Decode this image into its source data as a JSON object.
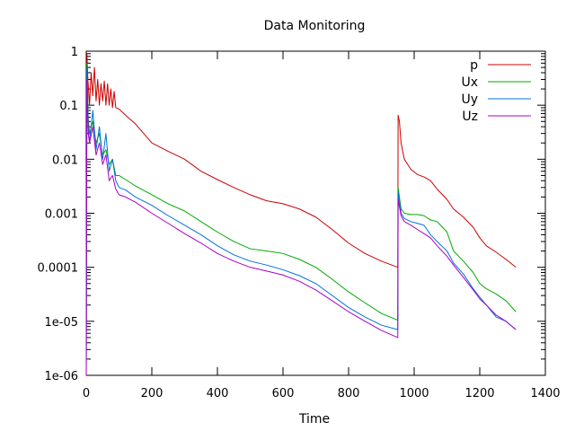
{
  "chart_data": {
    "type": "line",
    "title": "Data Monitoring",
    "xlabel": "Time",
    "ylabel": "",
    "xlim": [
      0,
      1400
    ],
    "ylim": [
      1e-06,
      1
    ],
    "yscale": "log",
    "grid": false,
    "legend_position": "top-right",
    "x_ticks": [
      0,
      200,
      400,
      600,
      800,
      1000,
      1200,
      1400
    ],
    "x_tick_labels": [
      "0",
      "200",
      "400",
      "600",
      "800",
      "1000",
      "1200",
      "1400"
    ],
    "y_ticks": [
      1e-06,
      1e-05,
      0.0001,
      0.001,
      0.01,
      0.1,
      1
    ],
    "y_tick_labels": [
      "1e-06",
      "1e-05",
      "0.0001",
      "0.001",
      "0.01",
      "0.1",
      "1"
    ],
    "series": [
      {
        "name": "p",
        "color": "#cc0000",
        "points": [
          [
            0,
            1e-06
          ],
          [
            2,
            0.9
          ],
          [
            5,
            0.3
          ],
          [
            10,
            0.1
          ],
          [
            15,
            0.4
          ],
          [
            20,
            0.15
          ],
          [
            25,
            0.5
          ],
          [
            30,
            0.12
          ],
          [
            35,
            0.3
          ],
          [
            40,
            0.1
          ],
          [
            45,
            0.25
          ],
          [
            50,
            0.12
          ],
          [
            55,
            0.28
          ],
          [
            60,
            0.1
          ],
          [
            65,
            0.25
          ],
          [
            70,
            0.1
          ],
          [
            75,
            0.2
          ],
          [
            80,
            0.09
          ],
          [
            85,
            0.18
          ],
          [
            90,
            0.09
          ],
          [
            100,
            0.085
          ],
          [
            120,
            0.065
          ],
          [
            150,
            0.045
          ],
          [
            200,
            0.02
          ],
          [
            250,
            0.014
          ],
          [
            300,
            0.01
          ],
          [
            350,
            0.006
          ],
          [
            400,
            0.0042
          ],
          [
            450,
            0.003
          ],
          [
            500,
            0.0022
          ],
          [
            550,
            0.0017
          ],
          [
            600,
            0.0015
          ],
          [
            650,
            0.0012
          ],
          [
            700,
            0.00085
          ],
          [
            750,
            0.0005
          ],
          [
            800,
            0.00028
          ],
          [
            850,
            0.00018
          ],
          [
            900,
            0.00013
          ],
          [
            950,
            0.0001
          ],
          [
            951,
            0.065
          ],
          [
            955,
            0.05
          ],
          [
            960,
            0.02
          ],
          [
            970,
            0.01
          ],
          [
            990,
            0.0065
          ],
          [
            1010,
            0.0052
          ],
          [
            1030,
            0.0047
          ],
          [
            1050,
            0.004
          ],
          [
            1070,
            0.0028
          ],
          [
            1100,
            0.0018
          ],
          [
            1120,
            0.0012
          ],
          [
            1150,
            0.00085
          ],
          [
            1180,
            0.00055
          ],
          [
            1200,
            0.00035
          ],
          [
            1220,
            0.00025
          ],
          [
            1250,
            0.00019
          ],
          [
            1280,
            0.00014
          ],
          [
            1310,
            0.0001
          ]
        ]
      },
      {
        "name": "Ux",
        "color": "#00aa00",
        "points": [
          [
            0,
            1e-06
          ],
          [
            2,
            0.6
          ],
          [
            6,
            0.06
          ],
          [
            10,
            0.03
          ],
          [
            20,
            0.05
          ],
          [
            30,
            0.02
          ],
          [
            40,
            0.03
          ],
          [
            50,
            0.012
          ],
          [
            60,
            0.015
          ],
          [
            70,
            0.008
          ],
          [
            80,
            0.01
          ],
          [
            90,
            0.005
          ],
          [
            100,
            0.005
          ],
          [
            120,
            0.0042
          ],
          [
            150,
            0.0032
          ],
          [
            200,
            0.0022
          ],
          [
            250,
            0.0015
          ],
          [
            300,
            0.0011
          ],
          [
            350,
            0.0007
          ],
          [
            400,
            0.00045
          ],
          [
            450,
            0.0003
          ],
          [
            500,
            0.00022
          ],
          [
            550,
            0.0002
          ],
          [
            600,
            0.00018
          ],
          [
            650,
            0.00014
          ],
          [
            700,
            0.0001
          ],
          [
            750,
            6e-05
          ],
          [
            800,
            3.5e-05
          ],
          [
            850,
            2.2e-05
          ],
          [
            900,
            1.4e-05
          ],
          [
            950,
            1.05e-05
          ],
          [
            951,
            0.003
          ],
          [
            960,
            0.0012
          ],
          [
            970,
            0.001
          ],
          [
            990,
            0.00095
          ],
          [
            1010,
            0.00095
          ],
          [
            1030,
            0.0009
          ],
          [
            1050,
            0.00075
          ],
          [
            1070,
            0.0007
          ],
          [
            1100,
            0.00045
          ],
          [
            1120,
            0.0002
          ],
          [
            1150,
            0.00013
          ],
          [
            1180,
            8e-05
          ],
          [
            1200,
            5e-05
          ],
          [
            1220,
            4e-05
          ],
          [
            1250,
            3.2e-05
          ],
          [
            1280,
            2.4e-05
          ],
          [
            1310,
            1.5e-05
          ]
        ]
      },
      {
        "name": "Uy",
        "color": "#0070dd",
        "points": [
          [
            0,
            1e-06
          ],
          [
            2,
            0.5
          ],
          [
            6,
            0.04
          ],
          [
            10,
            0.02
          ],
          [
            20,
            0.08
          ],
          [
            30,
            0.015
          ],
          [
            40,
            0.04
          ],
          [
            50,
            0.01
          ],
          [
            60,
            0.03
          ],
          [
            70,
            0.006
          ],
          [
            80,
            0.01
          ],
          [
            90,
            0.004
          ],
          [
            100,
            0.003
          ],
          [
            120,
            0.0027
          ],
          [
            150,
            0.002
          ],
          [
            200,
            0.0014
          ],
          [
            250,
            0.0009
          ],
          [
            300,
            0.0006
          ],
          [
            350,
            0.0004
          ],
          [
            400,
            0.00025
          ],
          [
            450,
            0.00017
          ],
          [
            500,
            0.00013
          ],
          [
            550,
            0.00011
          ],
          [
            600,
            9e-05
          ],
          [
            650,
            7e-05
          ],
          [
            700,
            5e-05
          ],
          [
            750,
            3e-05
          ],
          [
            800,
            1.8e-05
          ],
          [
            850,
            1.2e-05
          ],
          [
            900,
            8.5e-06
          ],
          [
            950,
            7e-06
          ],
          [
            951,
            0.0025
          ],
          [
            960,
            0.001
          ],
          [
            970,
            0.0008
          ],
          [
            990,
            0.0007
          ],
          [
            1010,
            0.00065
          ],
          [
            1030,
            0.0006
          ],
          [
            1050,
            0.0004
          ],
          [
            1070,
            0.0003
          ],
          [
            1100,
            0.0002
          ],
          [
            1120,
            0.00012
          ],
          [
            1150,
            7.5e-05
          ],
          [
            1180,
            4e-05
          ],
          [
            1200,
            2.8e-05
          ],
          [
            1220,
            2e-05
          ],
          [
            1250,
            1.2e-05
          ],
          [
            1280,
            1e-05
          ],
          [
            1310,
            7e-06
          ]
        ]
      },
      {
        "name": "Uz",
        "color": "#aa00cc",
        "points": [
          [
            0,
            1e-06
          ],
          [
            2,
            0.3
          ],
          [
            6,
            0.03
          ],
          [
            10,
            0.02
          ],
          [
            20,
            0.04
          ],
          [
            30,
            0.012
          ],
          [
            40,
            0.02
          ],
          [
            50,
            0.008
          ],
          [
            60,
            0.012
          ],
          [
            70,
            0.004
          ],
          [
            80,
            0.005
          ],
          [
            90,
            0.0028
          ],
          [
            100,
            0.0022
          ],
          [
            120,
            0.002
          ],
          [
            150,
            0.0016
          ],
          [
            200,
            0.001
          ],
          [
            250,
            0.00065
          ],
          [
            300,
            0.00042
          ],
          [
            350,
            0.00028
          ],
          [
            400,
            0.00018
          ],
          [
            450,
            0.00013
          ],
          [
            500,
            0.0001
          ],
          [
            550,
            8.5e-05
          ],
          [
            600,
            7.2e-05
          ],
          [
            650,
            5.5e-05
          ],
          [
            700,
            3.8e-05
          ],
          [
            750,
            2.4e-05
          ],
          [
            800,
            1.5e-05
          ],
          [
            850,
            1e-05
          ],
          [
            900,
            6.8e-06
          ],
          [
            950,
            5e-06
          ],
          [
            951,
            0.0018
          ],
          [
            960,
            0.0009
          ],
          [
            970,
            0.0007
          ],
          [
            990,
            0.0006
          ],
          [
            1010,
            0.0005
          ],
          [
            1030,
            0.00042
          ],
          [
            1050,
            0.00035
          ],
          [
            1070,
            0.00025
          ],
          [
            1100,
            0.00016
          ],
          [
            1120,
            0.00011
          ],
          [
            1150,
            6.5e-05
          ],
          [
            1180,
            3.8e-05
          ],
          [
            1200,
            2.6e-05
          ],
          [
            1220,
            2e-05
          ],
          [
            1250,
            1.3e-05
          ],
          [
            1280,
            1e-05
          ],
          [
            1310,
            7e-06
          ]
        ]
      }
    ]
  }
}
